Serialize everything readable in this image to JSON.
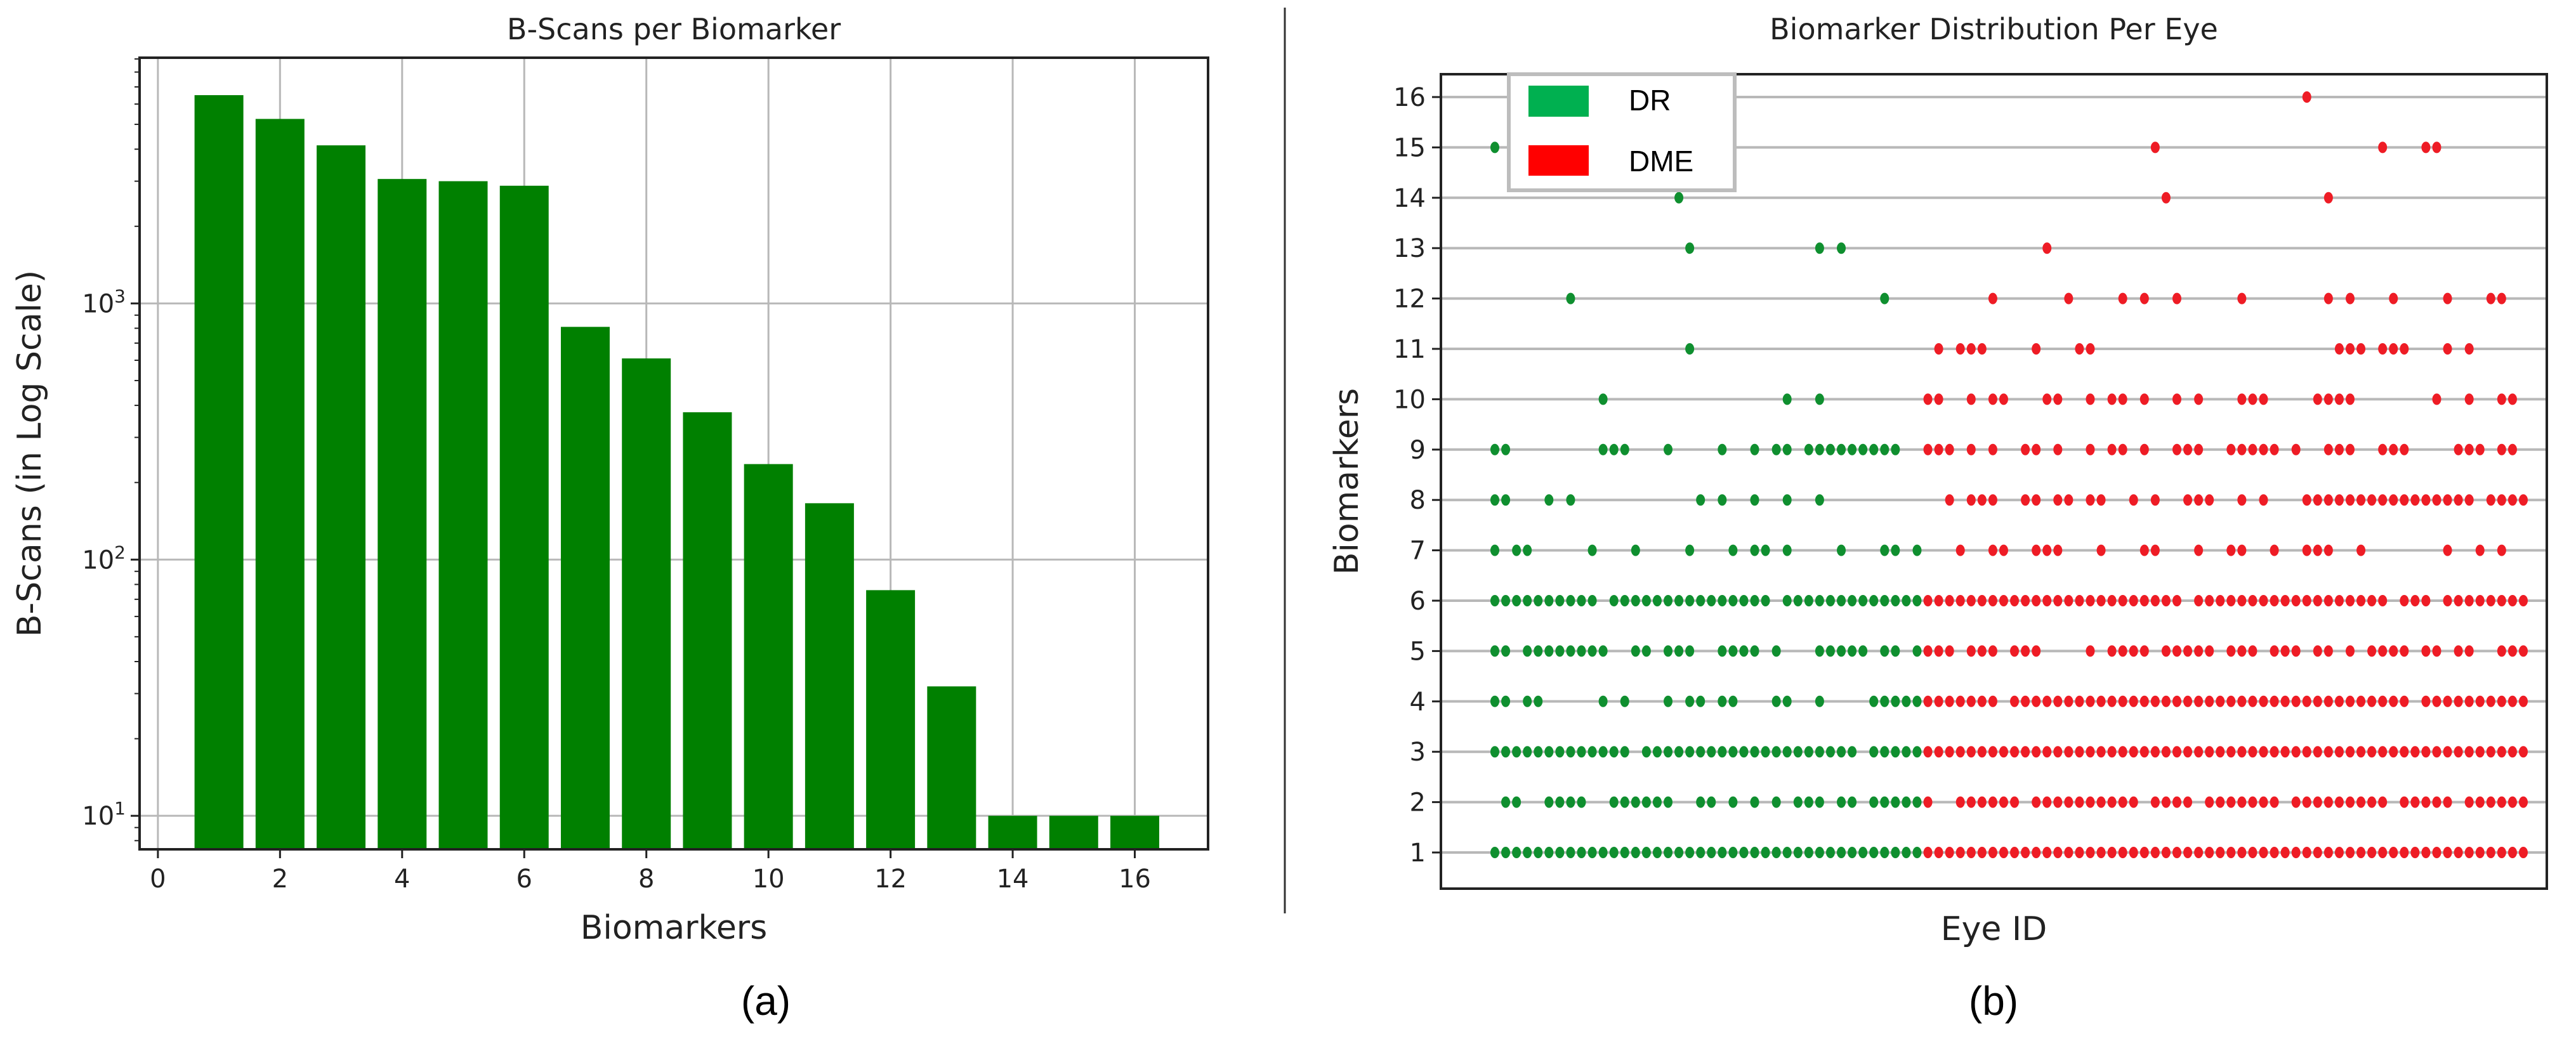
{
  "colors": {
    "bar": "#008000",
    "dr_dot": "#0f8f2f",
    "dme_dot": "#ee1c25",
    "dr_legend": "#00b050",
    "dme_legend": "#ff0000",
    "grid": "#b8b8b8"
  },
  "chart_data": [
    {
      "type": "bar",
      "title": "B-Scans per Biomarker",
      "xlabel": "Biomarkers",
      "ylabel": "B-Scans (in Log Scale)",
      "yscale": "log",
      "ylim": [
        7.4,
        9100
      ],
      "xlim": [
        -0.3,
        17.2
      ],
      "grid": true,
      "panel_label": "(a)",
      "categories": [
        1,
        2,
        3,
        4,
        5,
        6,
        7,
        8,
        9,
        10,
        11,
        12,
        13,
        14,
        15,
        16
      ],
      "values": [
        6500,
        5250,
        4140,
        3060,
        3000,
        2880,
        810,
        610,
        376,
        236,
        166,
        76,
        32,
        10,
        10,
        10
      ],
      "xticks": [
        "0",
        "2",
        "4",
        "6",
        "8",
        "10",
        "12",
        "14",
        "16"
      ],
      "yticks": [
        {
          "value": 10,
          "base": "10",
          "exp": "1"
        },
        {
          "value": 100,
          "base": "10",
          "exp": "2"
        },
        {
          "value": 1000,
          "base": "10",
          "exp": "3"
        }
      ]
    },
    {
      "type": "scatter",
      "title": "Biomarker Distribution Per Eye",
      "xlabel": "Eye ID",
      "ylabel": "Biomarkers",
      "panel_label": "(b)",
      "grid": true,
      "legend_placement": "top-left",
      "legend": [
        {
          "label": "DR"
        },
        {
          "label": "DME"
        }
      ],
      "num_eyes": 96,
      "dr_eyes": [
        0,
        39
      ],
      "dme_eyes": [
        40,
        95
      ],
      "yticks": [
        "1",
        "2",
        "3",
        "4",
        "5",
        "6",
        "7",
        "8",
        "9",
        "10",
        "11",
        "12",
        "13",
        "14",
        "15",
        "16"
      ],
      "rows": {
        "16": [
          75
        ],
        "15": [
          0,
          61,
          82,
          86,
          87
        ],
        "14": [
          17,
          62,
          77
        ],
        "13": [
          18,
          30,
          32,
          51
        ],
        "12": [
          7,
          36,
          46,
          53,
          58,
          60,
          63,
          69,
          77,
          79,
          83,
          88,
          92,
          93
        ],
        "11": [
          18,
          41,
          43,
          44,
          45,
          50,
          54,
          55,
          78,
          79,
          80,
          82,
          83,
          84,
          88,
          90
        ],
        "10": [
          10,
          27,
          30,
          40,
          41,
          44,
          46,
          47,
          51,
          52,
          55,
          57,
          58,
          60,
          63,
          65,
          69,
          70,
          71,
          76,
          77,
          78,
          79,
          87,
          90,
          93,
          94
        ],
        "9": [
          0,
          1,
          10,
          11,
          12,
          16,
          21,
          24,
          26,
          27,
          29,
          30,
          31,
          32,
          33,
          34,
          35,
          36,
          37,
          40,
          41,
          42,
          44,
          46,
          49,
          50,
          52,
          55,
          57,
          58,
          60,
          63,
          64,
          65,
          68,
          69,
          70,
          71,
          72,
          74,
          77,
          78,
          79,
          82,
          83,
          84,
          89,
          90,
          91,
          93,
          94
        ],
        "8": [
          0,
          1,
          5,
          7,
          19,
          21,
          24,
          27,
          30,
          42,
          44,
          45,
          46,
          49,
          50,
          52,
          53,
          55,
          56,
          59,
          61,
          64,
          65,
          66,
          69,
          71,
          75,
          76,
          77,
          78,
          79,
          80,
          81,
          82,
          83,
          84,
          85,
          86,
          87,
          88,
          89,
          90,
          92,
          93,
          94,
          95
        ],
        "7": [
          0,
          2,
          3,
          9,
          13,
          18,
          22,
          24,
          25,
          27,
          32,
          36,
          37,
          39,
          43,
          46,
          47,
          50,
          51,
          52,
          56,
          60,
          61,
          65,
          68,
          69,
          72,
          75,
          76,
          77,
          80,
          88,
          91,
          93
        ],
        "6": "0-9,11-25,27-63,65-82,84-86,88-95",
        "5": "0-1,3-10,13-14,16-18,21-24,26,30-34,36-37,39-42,44-46,48-50,55,57-60,62-66,68-70,72-74,76-77,79,81-84,86-87,89-90,93-95",
        "4": "0-1,3-4,10,12,16,18-19,21-22,26-27,30,35-46,48-84,86-95",
        "3": "0-12,14-33,35-95",
        "2": "1-2,5-8,11-16,19-20,22,24,26,28-30,32-33,35-40,43-48,50-59,61-64,66-72,74-82,84-88,90-95",
        "1": "0-95"
      }
    }
  ]
}
